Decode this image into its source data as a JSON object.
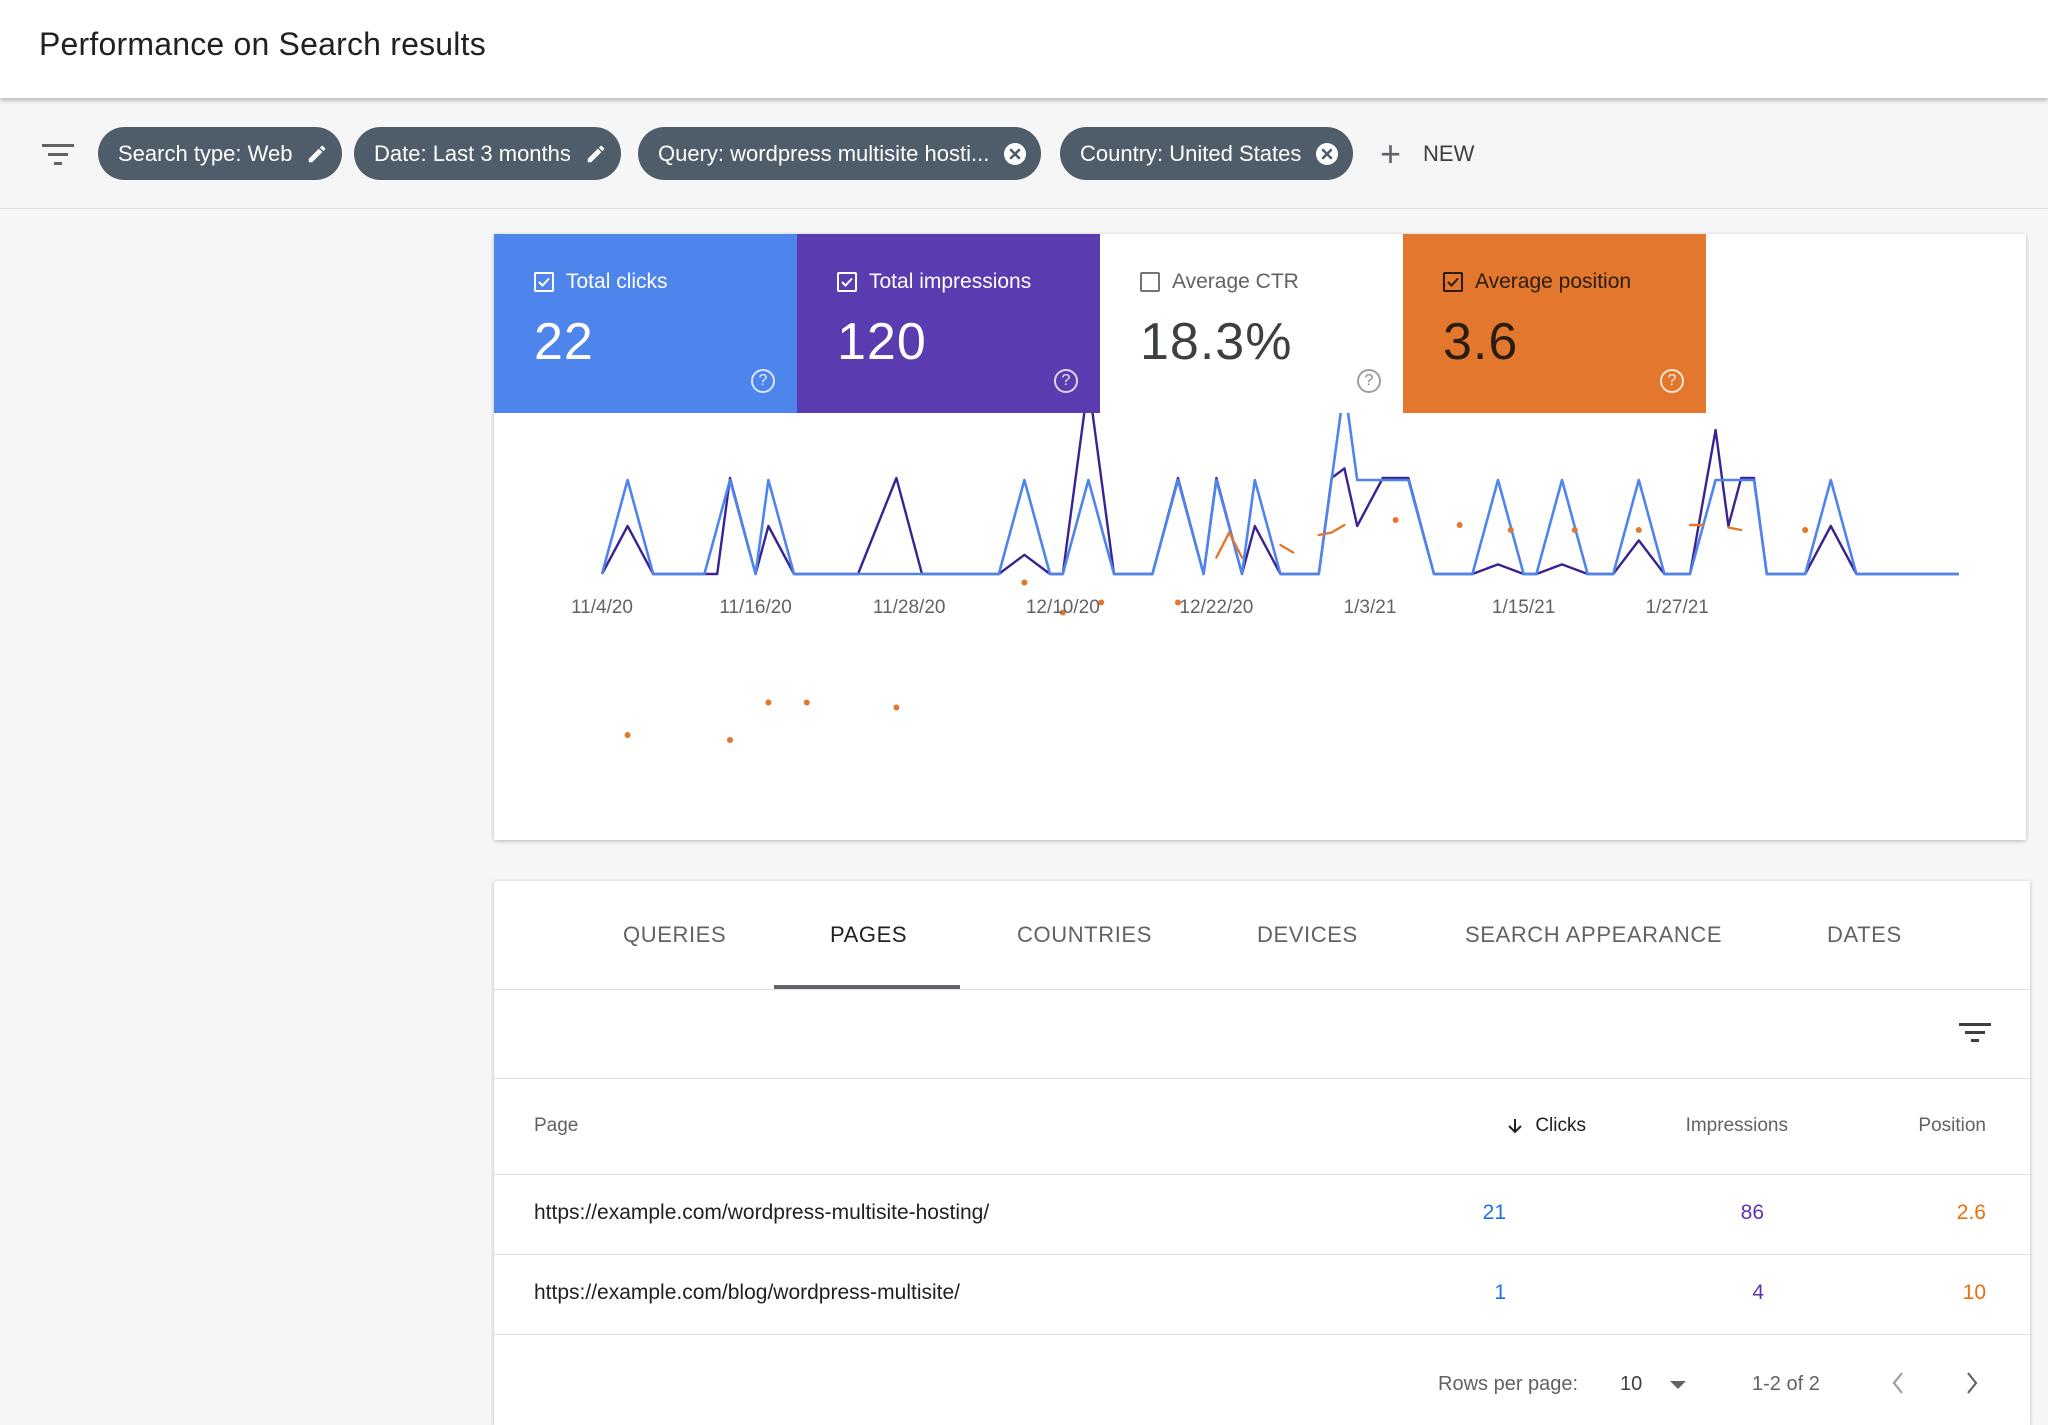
{
  "header": {
    "title": "Performance on Search results"
  },
  "filters": {
    "icon": "filter-icon",
    "chips": [
      {
        "label": "Search type: Web",
        "action": "edit"
      },
      {
        "label": "Date: Last 3 months",
        "action": "edit"
      },
      {
        "label": "Query: wordpress multisite hosti...",
        "action": "remove"
      },
      {
        "label": "Country: United States",
        "action": "remove"
      }
    ],
    "new_label": "NEW"
  },
  "metrics": [
    {
      "label": "Total clicks",
      "value": "22",
      "checked": true,
      "color": "#4e85ec"
    },
    {
      "label": "Total impressions",
      "value": "120",
      "checked": true,
      "color": "#5b3bb0"
    },
    {
      "label": "Average CTR",
      "value": "18.3%",
      "checked": false,
      "color": "#ffffff"
    },
    {
      "label": "Average position",
      "value": "3.6",
      "checked": true,
      "color": "#e2772d"
    }
  ],
  "chart_data": {
    "type": "line",
    "x_ticks": [
      "11/4/20",
      "11/16/20",
      "11/28/20",
      "12/10/20",
      "12/22/20",
      "1/3/21",
      "1/15/21",
      "1/27/21"
    ],
    "x_range": [
      "11/4/20",
      "2/2/21"
    ],
    "y_axis_labels": false,
    "grid": false,
    "series": [
      {
        "name": "Total clicks",
        "color": "#4e85ec",
        "points": [
          [
            0,
            0
          ],
          [
            2,
            1
          ],
          [
            4,
            0
          ],
          [
            8,
            0
          ],
          [
            10,
            1
          ],
          [
            12,
            0
          ],
          [
            13,
            1
          ],
          [
            15,
            0
          ],
          [
            18,
            0
          ],
          [
            20,
            0
          ],
          [
            22,
            0
          ],
          [
            31,
            0
          ],
          [
            33,
            1
          ],
          [
            35,
            0
          ],
          [
            36,
            0
          ],
          [
            38,
            1
          ],
          [
            40,
            0
          ],
          [
            43,
            0
          ],
          [
            45,
            1
          ],
          [
            47,
            0
          ],
          [
            48,
            1
          ],
          [
            50,
            0
          ],
          [
            51,
            1
          ],
          [
            53,
            0
          ],
          [
            56,
            0
          ],
          [
            57,
            1
          ],
          [
            58,
            2
          ],
          [
            59,
            1
          ],
          [
            61,
            1
          ],
          [
            63,
            1
          ],
          [
            65,
            0
          ],
          [
            68,
            0
          ],
          [
            70,
            1
          ],
          [
            72,
            0
          ],
          [
            73,
            0
          ],
          [
            75,
            1
          ],
          [
            77,
            0
          ],
          [
            79,
            0
          ],
          [
            81,
            1
          ],
          [
            83,
            0
          ],
          [
            85,
            0
          ],
          [
            87,
            1
          ],
          [
            88,
            1
          ],
          [
            90,
            1
          ],
          [
            91,
            0
          ],
          [
            94,
            0
          ],
          [
            96,
            1
          ],
          [
            98,
            0
          ],
          [
            106,
            0
          ]
        ]
      },
      {
        "name": "Total impressions",
        "color": "#3a2390",
        "points": [
          [
            0,
            0
          ],
          [
            2,
            1
          ],
          [
            4,
            0
          ],
          [
            8,
            0
          ],
          [
            9,
            0
          ],
          [
            10,
            2
          ],
          [
            12,
            0
          ],
          [
            13,
            1
          ],
          [
            15,
            0
          ],
          [
            18,
            0
          ],
          [
            20,
            0
          ],
          [
            23,
            2
          ],
          [
            25,
            0
          ],
          [
            31,
            0
          ],
          [
            33,
            0.4
          ],
          [
            35,
            0
          ],
          [
            36,
            0
          ],
          [
            38,
            4
          ],
          [
            40,
            0
          ],
          [
            43,
            0
          ],
          [
            45,
            2
          ],
          [
            47,
            0
          ],
          [
            48,
            2
          ],
          [
            50,
            0
          ],
          [
            51,
            1
          ],
          [
            53,
            0
          ],
          [
            56,
            0
          ],
          [
            57,
            2
          ],
          [
            58,
            2.2
          ],
          [
            59,
            1
          ],
          [
            61,
            2
          ],
          [
            63,
            2
          ],
          [
            65,
            0
          ],
          [
            68,
            0
          ],
          [
            70,
            0.2
          ],
          [
            72,
            0
          ],
          [
            73,
            0
          ],
          [
            75,
            0.2
          ],
          [
            77,
            0
          ],
          [
            79,
            0
          ],
          [
            81,
            0.7
          ],
          [
            83,
            0
          ],
          [
            85,
            0
          ],
          [
            87,
            3
          ],
          [
            88,
            1
          ],
          [
            89,
            2
          ],
          [
            90,
            2
          ],
          [
            91,
            0
          ],
          [
            94,
            0
          ],
          [
            96,
            1
          ],
          [
            98,
            0
          ],
          [
            106,
            0
          ]
        ]
      },
      {
        "name": "Average position",
        "color": "#e2772d",
        "points": [
          [
            2,
            9.6
          ],
          [
            10,
            9.8
          ],
          [
            13,
            8.3
          ],
          [
            16,
            8.3
          ],
          [
            23,
            8.5
          ],
          [
            33,
            3.5
          ],
          [
            36,
            4.7
          ],
          [
            39,
            4.3
          ],
          [
            45,
            4.3
          ],
          [
            48,
            2.5
          ],
          [
            49,
            1.5
          ],
          [
            50,
            2.5
          ],
          [
            53,
            2.0
          ],
          [
            54,
            2.3
          ],
          [
            56,
            1.6
          ],
          [
            57,
            1.5
          ],
          [
            58,
            1.2
          ],
          [
            62,
            1.0
          ],
          [
            67,
            1.2
          ],
          [
            71,
            1.4
          ],
          [
            76,
            1.4
          ],
          [
            81,
            1.4
          ],
          [
            85,
            1.2
          ],
          [
            86,
            1.2
          ],
          [
            88,
            1.3
          ],
          [
            89,
            1.4
          ],
          [
            94,
            1.4
          ]
        ]
      }
    ]
  },
  "tabs": [
    {
      "label": "QUERIES",
      "active": false
    },
    {
      "label": "PAGES",
      "active": true
    },
    {
      "label": "COUNTRIES",
      "active": false
    },
    {
      "label": "DEVICES",
      "active": false
    },
    {
      "label": "SEARCH APPEARANCE",
      "active": false
    },
    {
      "label": "DATES",
      "active": false
    }
  ],
  "table": {
    "columns": [
      "Page",
      "Clicks",
      "Impressions",
      "Position"
    ],
    "sorted_column": "Clicks",
    "rows": [
      {
        "page": "https://example.com/wordpress-multisite-hosting/",
        "clicks": "21",
        "impressions": "86",
        "position": "2.6"
      },
      {
        "page": "https://example.com/blog/wordpress-multisite/",
        "clicks": "1",
        "impressions": "4",
        "position": "10"
      }
    ]
  },
  "pagination": {
    "rows_per_page_label": "Rows per page:",
    "rows_per_page": "10",
    "range": "1-2 of 2"
  }
}
